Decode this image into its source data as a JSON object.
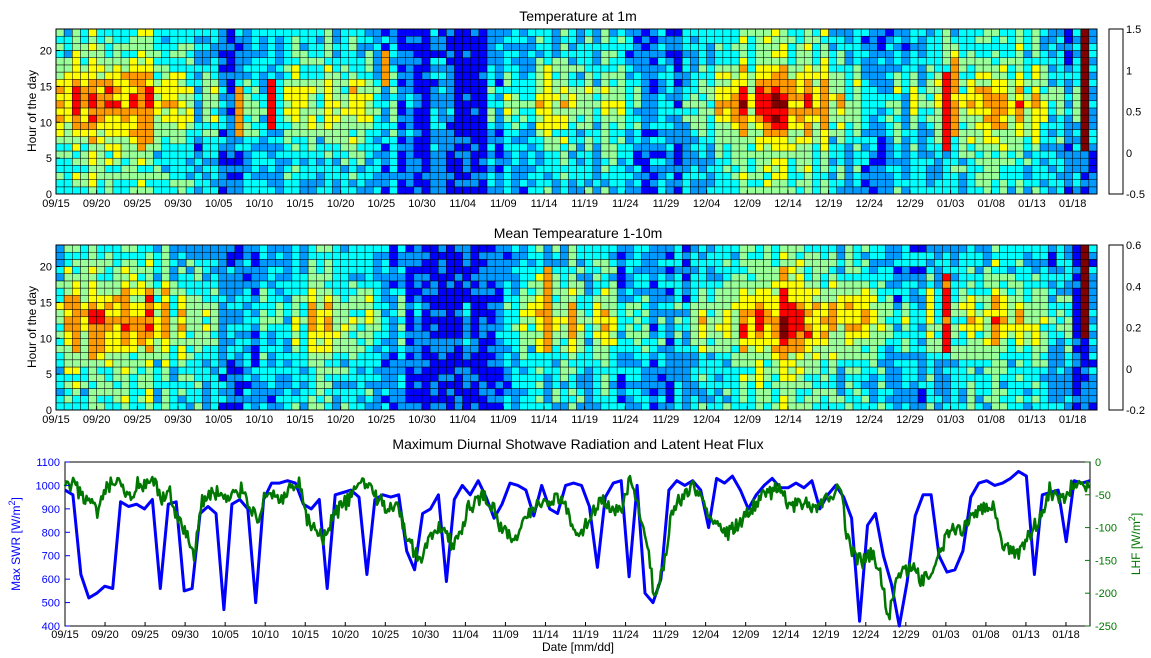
{
  "chart_data": [
    {
      "type": "heatmap",
      "title": "Temperature at 1m",
      "ylabel": "Hour of the day",
      "xlabel": "",
      "x_ticks": [
        "09/15",
        "09/20",
        "09/25",
        "09/30",
        "10/05",
        "10/10",
        "10/15",
        "10/20",
        "10/25",
        "10/30",
        "11/04",
        "11/09",
        "11/14",
        "11/19",
        "11/24",
        "11/29",
        "12/04",
        "12/09",
        "12/14",
        "12/19",
        "12/24",
        "12/29",
        "01/03",
        "01/08",
        "01/13",
        "01/18"
      ],
      "y_ticks": [
        "0",
        "5",
        "10",
        "15",
        "20"
      ],
      "ylim": [
        0,
        23
      ],
      "colorbar": {
        "ticks": [
          "-0.5",
          "0",
          "0.5",
          "1",
          "1.5"
        ],
        "range": [
          -0.5,
          1.5
        ],
        "colors": [
          "#0000ff",
          "#0099ff",
          "#00ffff",
          "#99ff99",
          "#ffff00",
          "#ff9900",
          "#ff0000",
          "#800000"
        ]
      },
      "days": 128,
      "hours": 23,
      "hot_spots": [
        {
          "day": 10,
          "hours": [
            6,
            16
          ],
          "value": 1.0
        },
        {
          "day": 22,
          "hours": [
            8,
            15
          ],
          "value": 1.0
        },
        {
          "day": 26,
          "hours": [
            9,
            16
          ],
          "value": 1.2
        },
        {
          "day": 40,
          "hours": [
            15,
            20
          ],
          "value": 1.0
        },
        {
          "day": 60,
          "hours": [
            8,
            18
          ],
          "value": 0.7
        },
        {
          "day": 109,
          "hours": [
            6,
            17
          ],
          "value": 1.2
        },
        {
          "day": 110,
          "hours": [
            8,
            20
          ],
          "value": 0.9
        },
        {
          "day": 126,
          "hours": [
            6,
            23
          ],
          "value": 1.5
        }
      ]
    },
    {
      "type": "heatmap",
      "title": "Mean Tempearature 1-10m",
      "ylabel": "Hour of the day",
      "xlabel": "",
      "x_ticks": [
        "09/15",
        "09/20",
        "09/25",
        "09/30",
        "10/05",
        "10/10",
        "10/15",
        "10/20",
        "10/25",
        "10/30",
        "11/04",
        "11/09",
        "11/14",
        "11/19",
        "11/24",
        "11/29",
        "12/04",
        "12/09",
        "12/14",
        "12/19",
        "12/24",
        "12/29",
        "01/03",
        "01/08",
        "01/13",
        "01/18"
      ],
      "y_ticks": [
        "0",
        "5",
        "10",
        "15",
        "20"
      ],
      "ylim": [
        0,
        23
      ],
      "colorbar": {
        "ticks": [
          "-0.2",
          "0",
          "0.2",
          "0.4",
          "0.6"
        ],
        "range": [
          -0.2,
          0.6
        ],
        "colors": [
          "#0000ff",
          "#0099ff",
          "#00ffff",
          "#99ff99",
          "#ffff00",
          "#ff9900",
          "#ff0000",
          "#800000"
        ]
      },
      "days": 128,
      "hours": 23,
      "hot_spots": [
        {
          "day": 60,
          "hours": [
            8,
            20
          ],
          "value": 0.4
        },
        {
          "day": 109,
          "hours": [
            8,
            19
          ],
          "value": 0.45
        },
        {
          "day": 126,
          "hours": [
            10,
            23
          ],
          "value": 0.6
        }
      ]
    },
    {
      "type": "line",
      "title": "Maximum Diurnal Shotwave Radiation and Latent Heat Flux",
      "xlabel": "Date [mm/dd]",
      "x_ticks": [
        "09/15",
        "09/20",
        "09/25",
        "09/30",
        "10/05",
        "10/10",
        "10/15",
        "10/20",
        "10/25",
        "10/30",
        "11/04",
        "11/09",
        "11/14",
        "11/19",
        "11/24",
        "11/29",
        "12/04",
        "12/09",
        "12/14",
        "12/19",
        "12/24",
        "12/29",
        "01/03",
        "01/08",
        "01/13",
        "01/18"
      ],
      "y_left": {
        "label_main": "Max SWR [W/m",
        "label_sup": "2",
        "label_end": "]",
        "ticks": [
          "400",
          "500",
          "600",
          "700",
          "800",
          "900",
          "1000",
          "1100"
        ],
        "ylim": [
          400,
          1100
        ],
        "color": "#0000ff"
      },
      "y_right": {
        "label_main": "LHF [W/m",
        "label_sup": "2",
        "label_end": "]",
        "ticks": [
          "-250",
          "-200",
          "-150",
          "-100",
          "-50",
          "0"
        ],
        "ylim": [
          -250,
          0
        ],
        "color": "#007700"
      },
      "series": [
        {
          "axis": "left",
          "color": "#0000ff",
          "values": [
            980,
            960,
            620,
            520,
            540,
            570,
            560,
            930,
            910,
            920,
            900,
            940,
            560,
            920,
            930,
            550,
            560,
            880,
            910,
            880,
            470,
            920,
            940,
            900,
            500,
            940,
            1010,
            1010,
            1020,
            1010,
            920,
            900,
            940,
            560,
            960,
            970,
            980,
            950,
            620,
            940,
            960,
            950,
            960,
            720,
            640,
            880,
            900,
            960,
            590,
            940,
            1000,
            960,
            1020,
            950,
            860,
            920,
            1010,
            1000,
            980,
            870,
            1000,
            900,
            880,
            1000,
            1010,
            1000,
            910,
            650,
            950,
            1010,
            1020,
            610,
            1000,
            540,
            500,
            600,
            980,
            1020,
            1000,
            1020,
            980,
            820,
            1030,
            1010,
            1040,
            980,
            900,
            960,
            1000,
            1030,
            990,
            990,
            1010,
            990,
            1020,
            900,
            960,
            1000,
            950,
            860,
            420,
            830,
            880,
            700,
            580,
            400,
            590,
            870,
            960,
            960,
            700,
            630,
            640,
            720,
            950,
            1010,
            1020,
            1000,
            1010,
            1030,
            1060,
            1040,
            620,
            960,
            970,
            980,
            760,
            1020,
            1010,
            1020
          ]
        },
        {
          "axis": "right",
          "color": "#007700",
          "values": [
            -40,
            -35,
            -50,
            -60,
            -80,
            -45,
            -30,
            -40,
            -55,
            -35,
            -40,
            -30,
            -60,
            -45,
            -90,
            -110,
            -140,
            -60,
            -50,
            -45,
            -60,
            -50,
            -40,
            -70,
            -85,
            -45,
            -50,
            -60,
            -40,
            -35,
            -90,
            -100,
            -120,
            -90,
            -70,
            -60,
            -40,
            -30,
            -40,
            -60,
            -70,
            -60,
            -100,
            -130,
            -150,
            -120,
            -110,
            -90,
            -130,
            -110,
            -70,
            -60,
            -50,
            -70,
            -100,
            -110,
            -120,
            -90,
            -70,
            -60,
            -60,
            -50,
            -70,
            -100,
            -110,
            -80,
            -65,
            -60,
            -80,
            -70,
            -30,
            -70,
            -120,
            -200,
            -170,
            -90,
            -60,
            -45,
            -40,
            -60,
            -80,
            -90,
            -110,
            -100,
            -90,
            -70,
            -60,
            -50,
            -40,
            -50,
            -70,
            -60,
            -60,
            -70,
            -60,
            -50,
            -30,
            -120,
            -150,
            -150,
            -140,
            -170,
            -240,
            -180,
            -170,
            -160,
            -180,
            -170,
            -150,
            -120,
            -100,
            -110,
            -90,
            -80,
            -70,
            -60,
            -120,
            -130,
            -140,
            -120,
            -100,
            -80,
            -40,
            -60,
            -60,
            -30,
            -40,
            -30
          ]
        }
      ]
    }
  ]
}
